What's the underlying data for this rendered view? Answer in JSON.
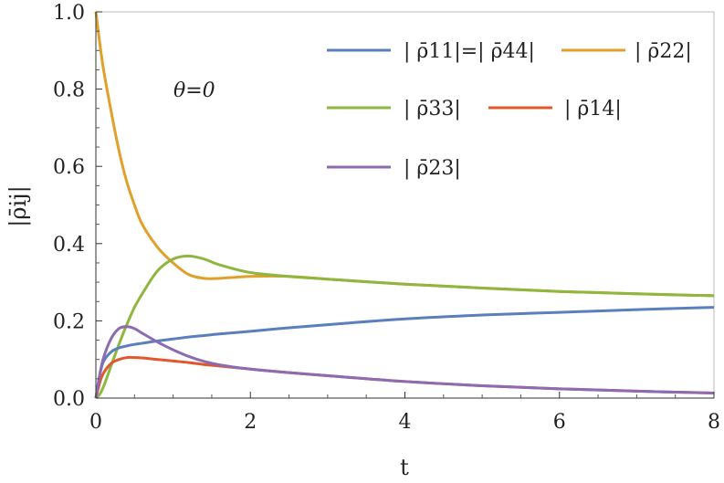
{
  "chart_data": {
    "type": "line",
    "title": "",
    "xlabel": "t",
    "ylabel": "|ρ̄ij|",
    "xlim": [
      0,
      8
    ],
    "ylim": [
      0,
      1.0
    ],
    "x_ticks": [
      "0",
      "2",
      "4",
      "6",
      "8"
    ],
    "y_ticks": [
      "0.0",
      "0.2",
      "0.4",
      "0.6",
      "0.8",
      "1.0"
    ],
    "grid": false,
    "legend_position": "top-right",
    "annotation": "θ=0",
    "x": [
      0,
      0.05,
      0.1,
      0.2,
      0.3,
      0.4,
      0.5,
      0.6,
      0.8,
      1.0,
      1.2,
      1.4,
      1.6,
      2.0,
      2.5,
      3.0,
      4.0,
      5.0,
      6.0,
      7.0,
      8.0
    ],
    "series": [
      {
        "name": "| ρ̄11|=| ρ̄44|",
        "color": "#5b7fbd",
        "values": [
          0,
          0.06,
          0.095,
          0.12,
          0.13,
          0.135,
          0.139,
          0.142,
          0.148,
          0.153,
          0.158,
          0.162,
          0.166,
          0.173,
          0.182,
          0.19,
          0.205,
          0.215,
          0.222,
          0.229,
          0.235
        ]
      },
      {
        "name": "| ρ̄22|",
        "color": "#e0a02a",
        "values": [
          1.0,
          0.92,
          0.85,
          0.74,
          0.64,
          0.56,
          0.5,
          0.45,
          0.39,
          0.35,
          0.32,
          0.31,
          0.31,
          0.315,
          0.315,
          0.308,
          0.295,
          0.285,
          0.276,
          0.27,
          0.265
        ]
      },
      {
        "name": "| ρ̄33|",
        "color": "#8fb63f",
        "values": [
          0,
          0.01,
          0.03,
          0.085,
          0.14,
          0.19,
          0.235,
          0.27,
          0.33,
          0.36,
          0.368,
          0.36,
          0.345,
          0.325,
          0.315,
          0.308,
          0.295,
          0.285,
          0.276,
          0.27,
          0.265
        ]
      },
      {
        "name": "| ρ̄14|",
        "color": "#e2582d",
        "values": [
          0,
          0.04,
          0.065,
          0.09,
          0.1,
          0.105,
          0.105,
          0.104,
          0.1,
          0.096,
          0.092,
          0.087,
          0.083,
          0.075,
          0.066,
          0.058,
          0.043,
          0.032,
          0.024,
          0.018,
          0.013
        ]
      },
      {
        "name": "| ρ̄23|",
        "color": "#8c6bb1",
        "values": [
          0,
          0.06,
          0.105,
          0.155,
          0.18,
          0.185,
          0.18,
          0.168,
          0.145,
          0.125,
          0.108,
          0.095,
          0.086,
          0.075,
          0.066,
          0.058,
          0.043,
          0.032,
          0.024,
          0.018,
          0.013
        ]
      }
    ]
  }
}
